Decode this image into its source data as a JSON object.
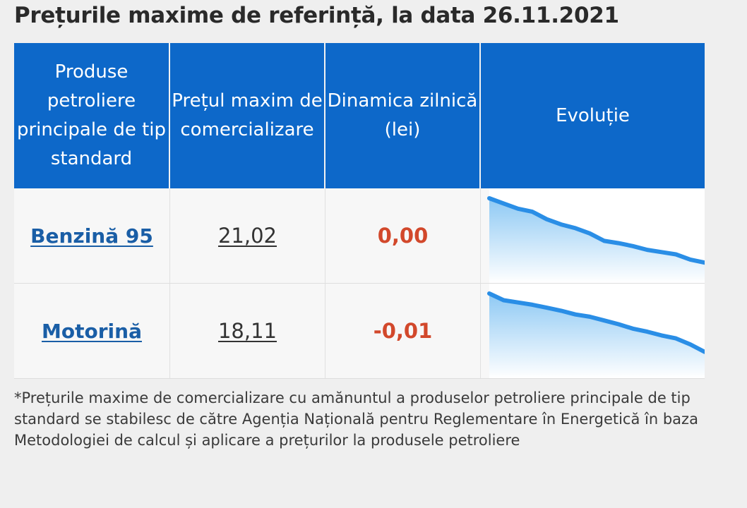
{
  "title": "Prețurile maxime de referință, la data 26.11.2021",
  "table": {
    "headers": [
      "Produse petroliere principale de tip standard",
      "Prețul maxim de comercializare",
      "Dinamica zilnică (lei)",
      "Evoluție"
    ],
    "rows": [
      {
        "product": "Benzină 95",
        "price": "21,02",
        "dynamic": "0,00",
        "trend": [
          1.0,
          0.93,
          0.86,
          0.82,
          0.72,
          0.65,
          0.6,
          0.53,
          0.43,
          0.4,
          0.36,
          0.31,
          0.28,
          0.25,
          0.18,
          0.14
        ]
      },
      {
        "product": "Motorină",
        "price": "18,11",
        "dynamic": "-0,01",
        "trend": [
          1.0,
          0.91,
          0.88,
          0.85,
          0.81,
          0.77,
          0.72,
          0.69,
          0.64,
          0.59,
          0.53,
          0.49,
          0.44,
          0.4,
          0.32,
          0.22
        ]
      }
    ]
  },
  "colors": {
    "header_bg": "#0d68c9",
    "link": "#1a5ea6",
    "dynamic": "#d2482b",
    "spark_line": "#2a8ee6",
    "spark_fill_top": "#8ec9f4"
  },
  "footnote": "*Prețurile maxime de comercializare cu amănuntul a produselor petroliere principale de tip standard se stabilesc de către Agenția Națională pentru Reglementare în Energetică în baza Metodologiei de calcul și aplicare a prețurilor la produsele petroliere"
}
